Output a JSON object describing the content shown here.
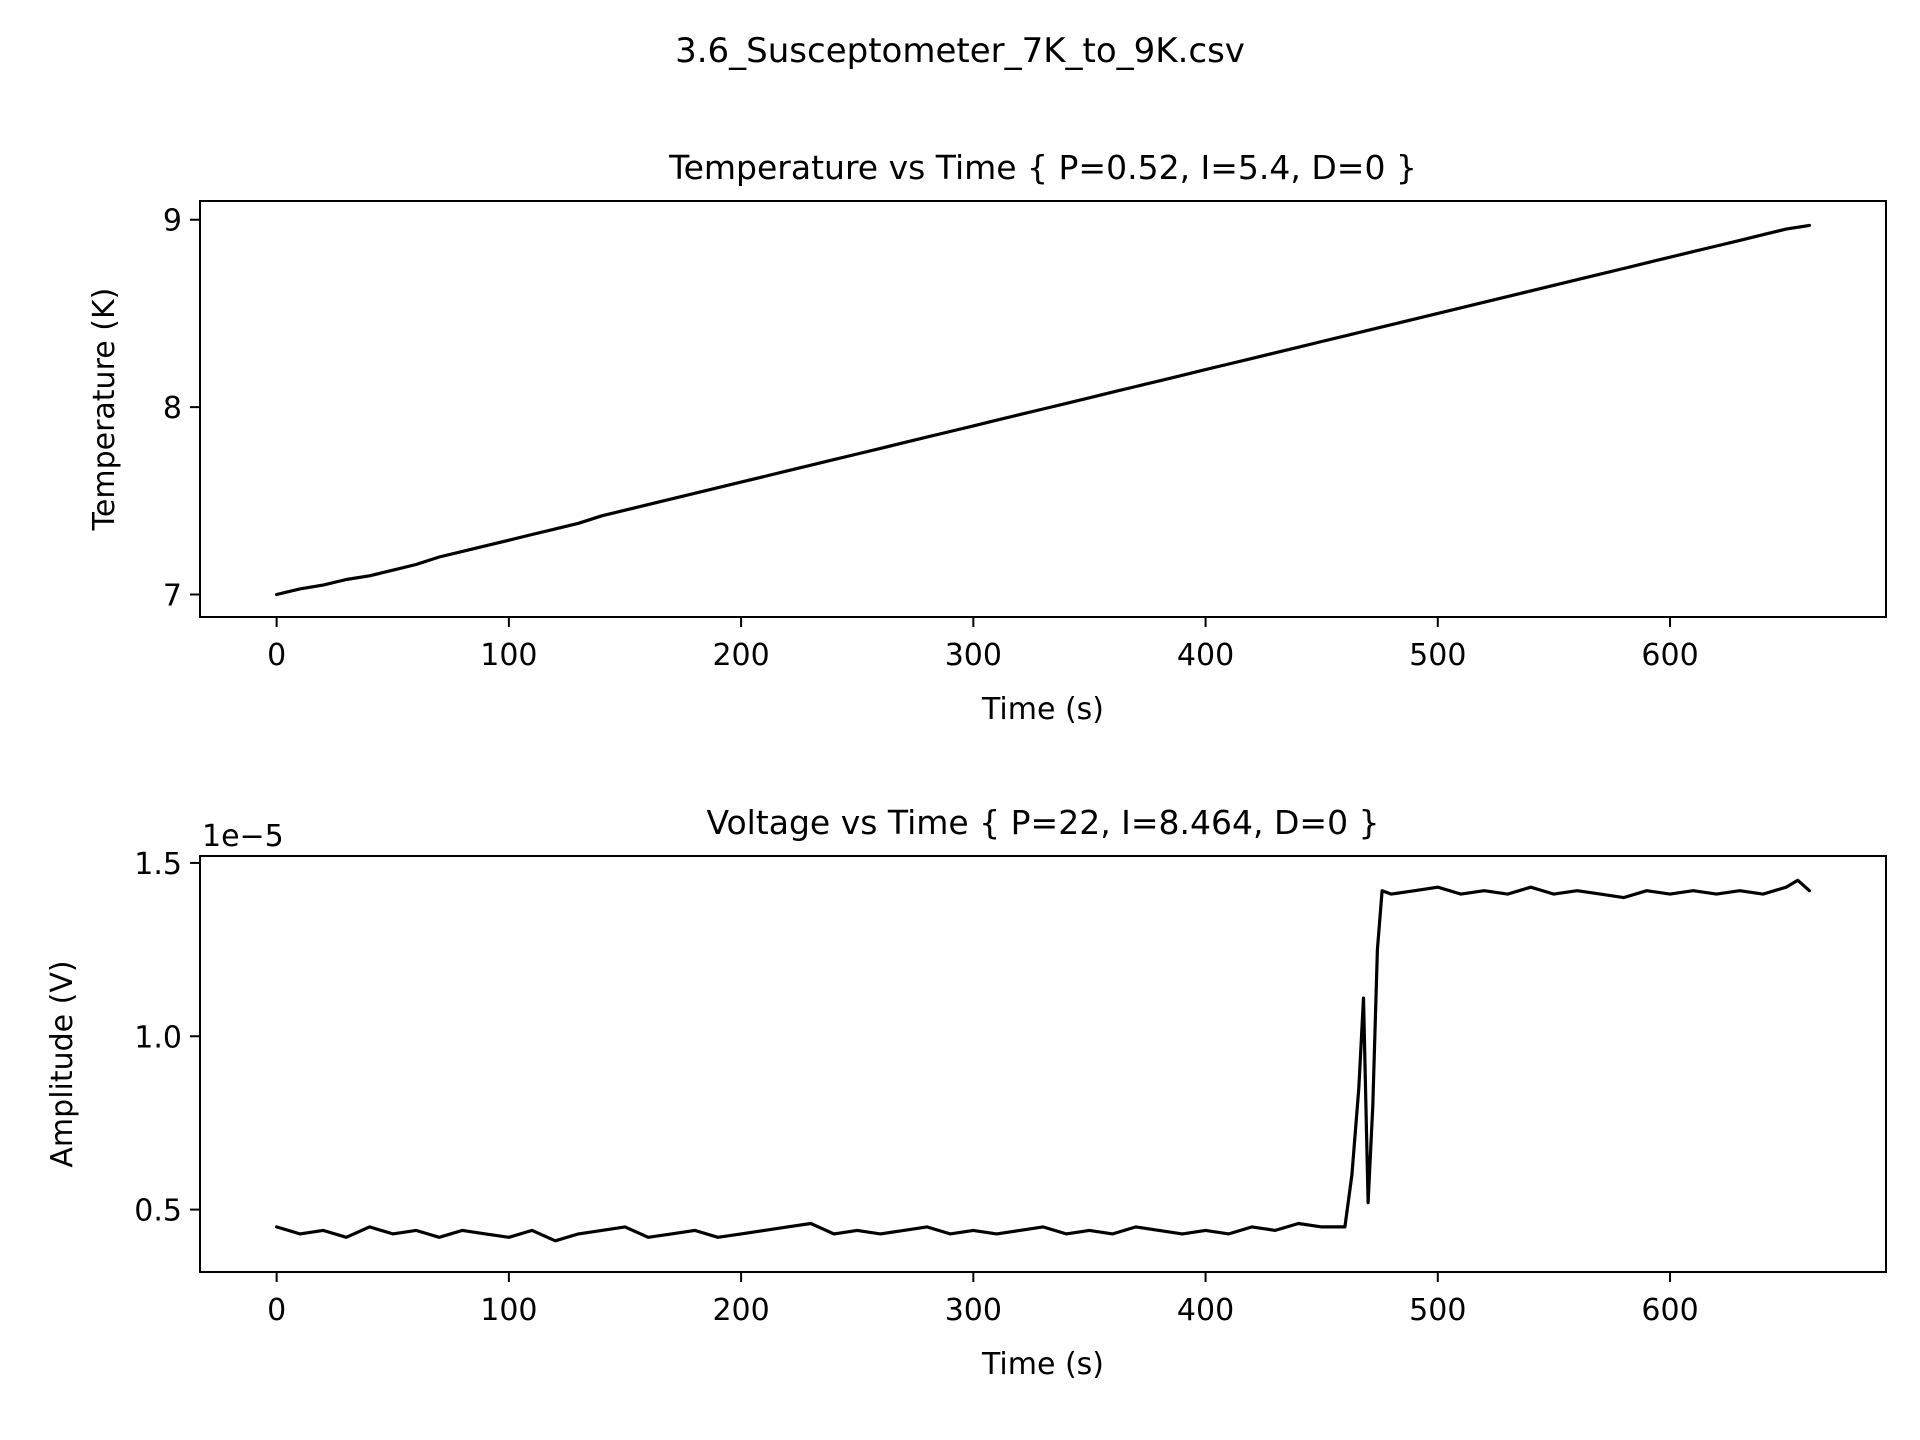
{
  "figure": {
    "suptitle": "3.6_Susceptometer_7K_to_9K.csv"
  },
  "chart_data": [
    {
      "type": "line",
      "title": "Temperature vs Time { P=0.52, I=5.4, D=0 }",
      "xlabel": "Time (s)",
      "ylabel": "Temperature (K)",
      "xlim": [
        -33,
        693
      ],
      "ylim": [
        6.88,
        9.1
      ],
      "xticks": [
        0,
        100,
        200,
        300,
        400,
        500,
        600
      ],
      "yticks": [
        7,
        8,
        9
      ],
      "xtick_labels": [
        "0",
        "100",
        "200",
        "300",
        "400",
        "500",
        "600"
      ],
      "ytick_labels": [
        "7",
        "8",
        "9"
      ],
      "offset_text": "",
      "grid": false,
      "line_color": "#000000",
      "series": [
        {
          "x": [
            0,
            10,
            20,
            30,
            40,
            50,
            60,
            70,
            80,
            90,
            100,
            110,
            120,
            130,
            140,
            150,
            160,
            170,
            180,
            190,
            200,
            210,
            220,
            230,
            240,
            250,
            260,
            270,
            280,
            290,
            300,
            310,
            320,
            330,
            340,
            350,
            360,
            370,
            380,
            390,
            400,
            410,
            420,
            430,
            440,
            450,
            460,
            470,
            480,
            490,
            500,
            510,
            520,
            530,
            540,
            550,
            560,
            570,
            580,
            590,
            600,
            610,
            620,
            630,
            640,
            650,
            660
          ],
          "y": [
            7.0,
            7.03,
            7.05,
            7.08,
            7.1,
            7.13,
            7.16,
            7.2,
            7.23,
            7.26,
            7.29,
            7.32,
            7.35,
            7.38,
            7.42,
            7.45,
            7.48,
            7.51,
            7.54,
            7.57,
            7.6,
            7.63,
            7.66,
            7.69,
            7.72,
            7.75,
            7.78,
            7.81,
            7.84,
            7.87,
            7.9,
            7.93,
            7.96,
            7.99,
            8.02,
            8.05,
            8.08,
            8.11,
            8.14,
            8.17,
            8.2,
            8.23,
            8.26,
            8.29,
            8.32,
            8.35,
            8.38,
            8.41,
            8.44,
            8.47,
            8.5,
            8.53,
            8.56,
            8.59,
            8.62,
            8.65,
            8.68,
            8.71,
            8.74,
            8.77,
            8.8,
            8.83,
            8.86,
            8.89,
            8.92,
            8.95,
            8.97
          ]
        }
      ]
    },
    {
      "type": "line",
      "title": "Voltage vs Time { P=22, I=8.464, D=0 }",
      "xlabel": "Time (s)",
      "ylabel": "Amplitude (V)",
      "xlim": [
        -33,
        693
      ],
      "ylim": [
        0.32,
        1.52
      ],
      "xticks": [
        0,
        100,
        200,
        300,
        400,
        500,
        600
      ],
      "yticks": [
        0.5,
        1.0,
        1.5
      ],
      "xtick_labels": [
        "0",
        "100",
        "200",
        "300",
        "400",
        "500",
        "600"
      ],
      "ytick_labels": [
        "0.5",
        "1.0",
        "1.5"
      ],
      "offset_text": "1e−5",
      "grid": false,
      "line_color": "#000000",
      "series": [
        {
          "x": [
            0,
            10,
            20,
            30,
            40,
            50,
            60,
            70,
            80,
            90,
            100,
            110,
            120,
            130,
            140,
            150,
            160,
            170,
            180,
            190,
            200,
            210,
            220,
            230,
            240,
            250,
            260,
            270,
            280,
            290,
            300,
            310,
            320,
            330,
            340,
            350,
            360,
            370,
            380,
            390,
            400,
            410,
            420,
            430,
            440,
            450,
            460,
            463,
            466,
            468,
            470,
            472,
            474,
            476,
            480,
            490,
            500,
            510,
            520,
            530,
            540,
            550,
            560,
            570,
            580,
            590,
            600,
            610,
            620,
            630,
            640,
            650,
            655,
            660
          ],
          "y": [
            0.45,
            0.43,
            0.44,
            0.42,
            0.45,
            0.43,
            0.44,
            0.42,
            0.44,
            0.43,
            0.42,
            0.44,
            0.41,
            0.43,
            0.44,
            0.45,
            0.42,
            0.43,
            0.44,
            0.42,
            0.43,
            0.44,
            0.45,
            0.46,
            0.43,
            0.44,
            0.43,
            0.44,
            0.45,
            0.43,
            0.44,
            0.43,
            0.44,
            0.45,
            0.43,
            0.44,
            0.43,
            0.45,
            0.44,
            0.43,
            0.44,
            0.43,
            0.45,
            0.44,
            0.46,
            0.45,
            0.45,
            0.6,
            0.85,
            1.11,
            0.52,
            0.8,
            1.25,
            1.42,
            1.41,
            1.42,
            1.43,
            1.41,
            1.42,
            1.41,
            1.43,
            1.41,
            1.42,
            1.41,
            1.4,
            1.42,
            1.41,
            1.42,
            1.41,
            1.42,
            1.41,
            1.43,
            1.45,
            1.42
          ]
        }
      ]
    }
  ]
}
